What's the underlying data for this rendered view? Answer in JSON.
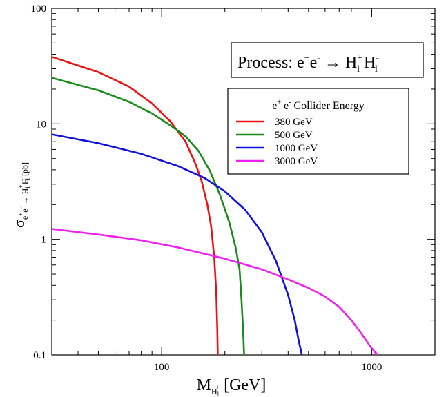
{
  "chart_data": {
    "type": "line",
    "xscale": "log",
    "yscale": "log",
    "xlim": [
      30,
      2000
    ],
    "ylim": [
      0.1,
      100
    ],
    "x_ticks": [
      100,
      1000
    ],
    "x_tick_labels": [
      "100",
      "1000"
    ],
    "y_ticks": [
      0.1,
      1,
      10,
      100
    ],
    "y_tick_labels": [
      "0.1",
      "1",
      "10",
      "100"
    ],
    "xlabel": {
      "main": "M",
      "sub1": "H",
      "sub2": "l",
      "sup": "±",
      "tail": " [GeV]"
    },
    "ylabel": {
      "main": "σ",
      "sub_pre": "e",
      "sub_p1": "+",
      "sub_e2": "e",
      "sub_p2": "-",
      "sub_arrow": " → H",
      "sub_p3": "+",
      "sub_l1": "l",
      "sub_H2": " H",
      "sub_p4": "-",
      "sub_l2": "l",
      "tail": " [pb]"
    },
    "annotation": {
      "prefix": "Process: e",
      "sup1": "+",
      "mid": "e",
      "sup2": "-",
      "arrow": " → H",
      "sup3": "+",
      "sub3": "l",
      "h2": " H",
      "sup4": "-",
      "sub4": "l"
    },
    "legend": {
      "title_pre": "e",
      "title_sup1": "+",
      "title_mid": " e",
      "title_sup2": "-",
      "title_post": " Collider Energy",
      "placement": "top-right"
    },
    "series": [
      {
        "name": "380 GeV",
        "color": "#ee1111",
        "x": [
          30,
          50,
          70,
          90,
          110,
          130,
          145,
          155,
          165,
          172,
          178,
          182,
          184,
          185
        ],
        "y": [
          38,
          28,
          21,
          15,
          10.5,
          7,
          4.5,
          3.2,
          2.0,
          1.3,
          0.7,
          0.35,
          0.17,
          0.1
        ]
      },
      {
        "name": "500 GeV",
        "color": "#1a8a1a",
        "x": [
          30,
          50,
          70,
          90,
          110,
          130,
          150,
          170,
          190,
          210,
          225,
          235,
          240,
          244,
          247
        ],
        "y": [
          25,
          19.5,
          15.5,
          12.3,
          9.7,
          7.8,
          5.8,
          3.9,
          2.4,
          1.4,
          0.85,
          0.55,
          0.3,
          0.17,
          0.1
        ]
      },
      {
        "name": "1000 GeV",
        "color": "#1010dd",
        "x": [
          30,
          50,
          80,
          120,
          160,
          200,
          250,
          300,
          350,
          400,
          430,
          450,
          460,
          465
        ],
        "y": [
          8.1,
          6.8,
          5.5,
          4.3,
          3.4,
          2.6,
          1.8,
          1.15,
          0.65,
          0.33,
          0.2,
          0.13,
          0.11,
          0.1
        ]
      },
      {
        "name": "3000 GeV",
        "color": "#ee22ee",
        "x": [
          30,
          50,
          80,
          120,
          200,
          300,
          400,
          500,
          600,
          700,
          800,
          900,
          980,
          1040,
          1070
        ],
        "y": [
          1.23,
          1.1,
          0.98,
          0.85,
          0.68,
          0.55,
          0.45,
          0.38,
          0.32,
          0.26,
          0.2,
          0.15,
          0.12,
          0.105,
          0.1
        ]
      }
    ]
  }
}
